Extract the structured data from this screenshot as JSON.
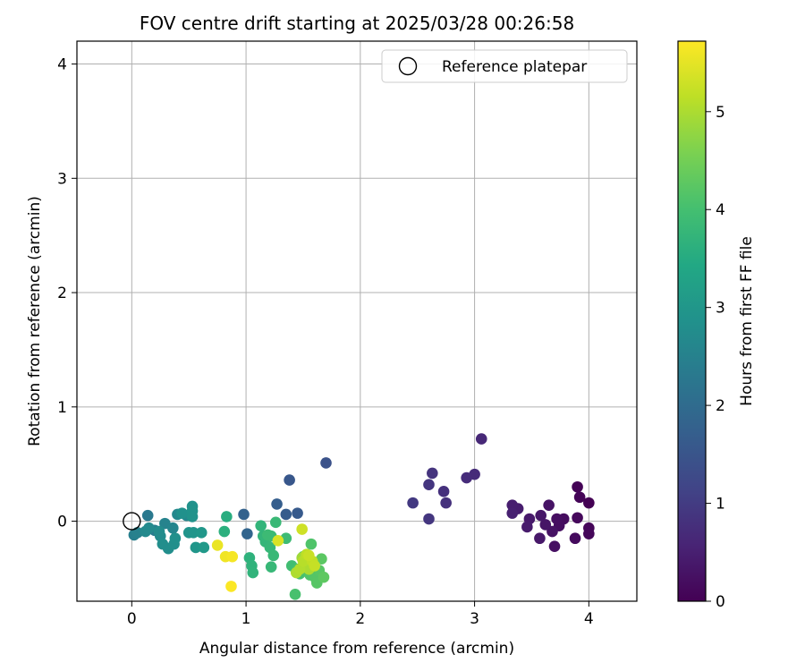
{
  "chart_data": {
    "type": "scatter",
    "title": "FOV centre drift starting at 2025/03/28 00:26:58",
    "xlabel": "Angular distance from reference (arcmin)",
    "ylabel": "Rotation from reference (arcmin)",
    "xlim": [
      -0.48,
      4.42
    ],
    "ylim": [
      -0.7,
      4.2
    ],
    "xticks": [
      0,
      1,
      2,
      3,
      4
    ],
    "yticks": [
      0,
      1,
      2,
      3,
      4
    ],
    "grid": true,
    "legend": {
      "position": "top-right",
      "entries": [
        "Reference platepar"
      ]
    },
    "reference_point": {
      "name": "Reference platepar",
      "x": 0,
      "y": 0
    },
    "colorbar": {
      "label": "Hours from first FF file",
      "colormap": "viridis",
      "range": [
        0,
        5.72
      ],
      "ticks": [
        0,
        1,
        2,
        3,
        4,
        5
      ]
    },
    "series": [
      {
        "points": [
          {
            "x": 4.0,
            "y": 0.16,
            "c": 0.0
          },
          {
            "x": 3.9,
            "y": 0.3,
            "c": 0.03
          },
          {
            "x": 3.92,
            "y": 0.21,
            "c": 0.05
          },
          {
            "x": 4.0,
            "y": -0.06,
            "c": 0.08
          },
          {
            "x": 4.0,
            "y": -0.11,
            "c": 0.1
          },
          {
            "x": 3.9,
            "y": 0.03,
            "c": 0.12
          },
          {
            "x": 3.88,
            "y": -0.15,
            "c": 0.15
          },
          {
            "x": 3.78,
            "y": 0.02,
            "c": 0.18
          },
          {
            "x": 3.74,
            "y": -0.04,
            "c": 0.2
          },
          {
            "x": 3.72,
            "y": 0.02,
            "c": 0.22
          },
          {
            "x": 3.7,
            "y": -0.22,
            "c": 0.25
          },
          {
            "x": 3.68,
            "y": -0.09,
            "c": 0.27
          },
          {
            "x": 3.65,
            "y": 0.14,
            "c": 0.3
          },
          {
            "x": 3.62,
            "y": -0.03,
            "c": 0.32
          },
          {
            "x": 3.58,
            "y": 0.05,
            "c": 0.35
          },
          {
            "x": 3.57,
            "y": -0.15,
            "c": 0.37
          },
          {
            "x": 3.48,
            "y": 0.02,
            "c": 0.4
          },
          {
            "x": 3.46,
            "y": -0.05,
            "c": 0.42
          },
          {
            "x": 3.38,
            "y": 0.11,
            "c": 0.45
          },
          {
            "x": 3.33,
            "y": 0.14,
            "c": 0.47
          },
          {
            "x": 3.33,
            "y": 0.07,
            "c": 0.5
          },
          {
            "x": 3.06,
            "y": 0.72,
            "c": 0.65
          },
          {
            "x": 3.0,
            "y": 0.41,
            "c": 0.7
          },
          {
            "x": 2.93,
            "y": 0.38,
            "c": 0.72
          },
          {
            "x": 2.73,
            "y": 0.26,
            "c": 0.78
          },
          {
            "x": 2.75,
            "y": 0.16,
            "c": 0.8
          },
          {
            "x": 2.63,
            "y": 0.42,
            "c": 0.85
          },
          {
            "x": 2.6,
            "y": 0.32,
            "c": 0.88
          },
          {
            "x": 2.6,
            "y": 0.02,
            "c": 0.9
          },
          {
            "x": 2.46,
            "y": 0.16,
            "c": 0.95
          },
          {
            "x": 1.7,
            "y": 0.51,
            "c": 1.45
          },
          {
            "x": 1.38,
            "y": 0.36,
            "c": 1.55
          },
          {
            "x": 1.45,
            "y": 0.07,
            "c": 1.6
          },
          {
            "x": 1.35,
            "y": 0.06,
            "c": 1.65
          },
          {
            "x": 1.27,
            "y": 0.15,
            "c": 1.7
          },
          {
            "x": 0.98,
            "y": 0.06,
            "c": 1.78
          },
          {
            "x": 1.01,
            "y": -0.11,
            "c": 1.85
          },
          {
            "x": 0.14,
            "y": 0.05,
            "c": 2.3
          },
          {
            "x": 0.2,
            "y": -0.08,
            "c": 2.4
          },
          {
            "x": 0.02,
            "y": -0.12,
            "c": 2.45
          },
          {
            "x": 0.05,
            "y": -0.1,
            "c": 2.5
          },
          {
            "x": 0.29,
            "y": -0.02,
            "c": 2.55
          },
          {
            "x": 0.36,
            "y": -0.06,
            "c": 2.58
          },
          {
            "x": 0.48,
            "y": 0.05,
            "c": 2.62
          },
          {
            "x": 0.4,
            "y": 0.06,
            "c": 2.65
          },
          {
            "x": 0.12,
            "y": -0.09,
            "c": 2.68
          },
          {
            "x": 0.15,
            "y": -0.06,
            "c": 2.7
          },
          {
            "x": 0.25,
            "y": -0.13,
            "c": 2.72
          },
          {
            "x": 0.24,
            "y": -0.09,
            "c": 2.75
          },
          {
            "x": 0.27,
            "y": -0.2,
            "c": 2.78
          },
          {
            "x": 0.32,
            "y": -0.24,
            "c": 2.8
          },
          {
            "x": 0.37,
            "y": -0.2,
            "c": 2.82
          },
          {
            "x": 0.38,
            "y": -0.15,
            "c": 2.84
          },
          {
            "x": 0.44,
            "y": 0.07,
            "c": 2.86
          },
          {
            "x": 0.53,
            "y": 0.13,
            "c": 2.88
          },
          {
            "x": 0.53,
            "y": 0.09,
            "c": 2.9
          },
          {
            "x": 0.53,
            "y": 0.04,
            "c": 2.92
          },
          {
            "x": 0.5,
            "y": -0.1,
            "c": 2.94
          },
          {
            "x": 0.54,
            "y": -0.1,
            "c": 2.96
          },
          {
            "x": 0.56,
            "y": -0.23,
            "c": 2.98
          },
          {
            "x": 0.61,
            "y": -0.1,
            "c": 3.0
          },
          {
            "x": 0.63,
            "y": -0.23,
            "c": 3.05
          },
          {
            "x": 0.83,
            "y": 0.04,
            "c": 3.55
          },
          {
            "x": 0.81,
            "y": -0.09,
            "c": 3.6
          },
          {
            "x": 1.03,
            "y": -0.32,
            "c": 3.65
          },
          {
            "x": 1.05,
            "y": -0.39,
            "c": 3.68
          },
          {
            "x": 1.06,
            "y": -0.45,
            "c": 3.7
          },
          {
            "x": 1.13,
            "y": -0.04,
            "c": 3.72
          },
          {
            "x": 1.15,
            "y": -0.13,
            "c": 3.74
          },
          {
            "x": 1.17,
            "y": -0.18,
            "c": 3.76
          },
          {
            "x": 1.21,
            "y": -0.23,
            "c": 3.78
          },
          {
            "x": 1.22,
            "y": -0.4,
            "c": 3.8
          },
          {
            "x": 1.24,
            "y": -0.3,
            "c": 3.82
          },
          {
            "x": 1.26,
            "y": -0.01,
            "c": 3.84
          },
          {
            "x": 1.22,
            "y": -0.13,
            "c": 3.86
          },
          {
            "x": 1.19,
            "y": -0.12,
            "c": 3.88
          },
          {
            "x": 1.35,
            "y": -0.15,
            "c": 3.9
          },
          {
            "x": 1.4,
            "y": -0.39,
            "c": 3.95
          },
          {
            "x": 1.45,
            "y": -0.42,
            "c": 4.0
          },
          {
            "x": 1.47,
            "y": -0.46,
            "c": 4.02
          },
          {
            "x": 1.43,
            "y": -0.64,
            "c": 4.05
          },
          {
            "x": 1.5,
            "y": -0.31,
            "c": 4.08
          },
          {
            "x": 1.52,
            "y": -0.42,
            "c": 4.1
          },
          {
            "x": 1.57,
            "y": -0.2,
            "c": 4.12
          },
          {
            "x": 1.56,
            "y": -0.47,
            "c": 4.15
          },
          {
            "x": 1.61,
            "y": -0.5,
            "c": 4.18
          },
          {
            "x": 1.62,
            "y": -0.54,
            "c": 4.2
          },
          {
            "x": 1.64,
            "y": -0.43,
            "c": 4.22
          },
          {
            "x": 1.66,
            "y": -0.33,
            "c": 4.25
          },
          {
            "x": 1.68,
            "y": -0.49,
            "c": 4.28
          },
          {
            "x": 1.49,
            "y": -0.32,
            "c": 4.9
          },
          {
            "x": 1.53,
            "y": -0.38,
            "c": 4.95
          },
          {
            "x": 1.55,
            "y": -0.42,
            "c": 5.0
          },
          {
            "x": 1.44,
            "y": -0.45,
            "c": 5.02
          },
          {
            "x": 1.47,
            "y": -0.42,
            "c": 5.05
          },
          {
            "x": 1.5,
            "y": -0.35,
            "c": 5.1
          },
          {
            "x": 1.53,
            "y": -0.29,
            "c": 5.15
          },
          {
            "x": 1.58,
            "y": -0.35,
            "c": 5.18
          },
          {
            "x": 1.6,
            "y": -0.39,
            "c": 5.22
          },
          {
            "x": 1.55,
            "y": -0.3,
            "c": 5.25
          },
          {
            "x": 1.49,
            "y": -0.07,
            "c": 5.3
          },
          {
            "x": 1.28,
            "y": -0.17,
            "c": 5.4
          },
          {
            "x": 0.75,
            "y": -0.21,
            "c": 5.55
          },
          {
            "x": 0.82,
            "y": -0.31,
            "c": 5.6
          },
          {
            "x": 0.88,
            "y": -0.31,
            "c": 5.65
          },
          {
            "x": 0.87,
            "y": -0.57,
            "c": 5.7
          }
        ]
      }
    ]
  }
}
